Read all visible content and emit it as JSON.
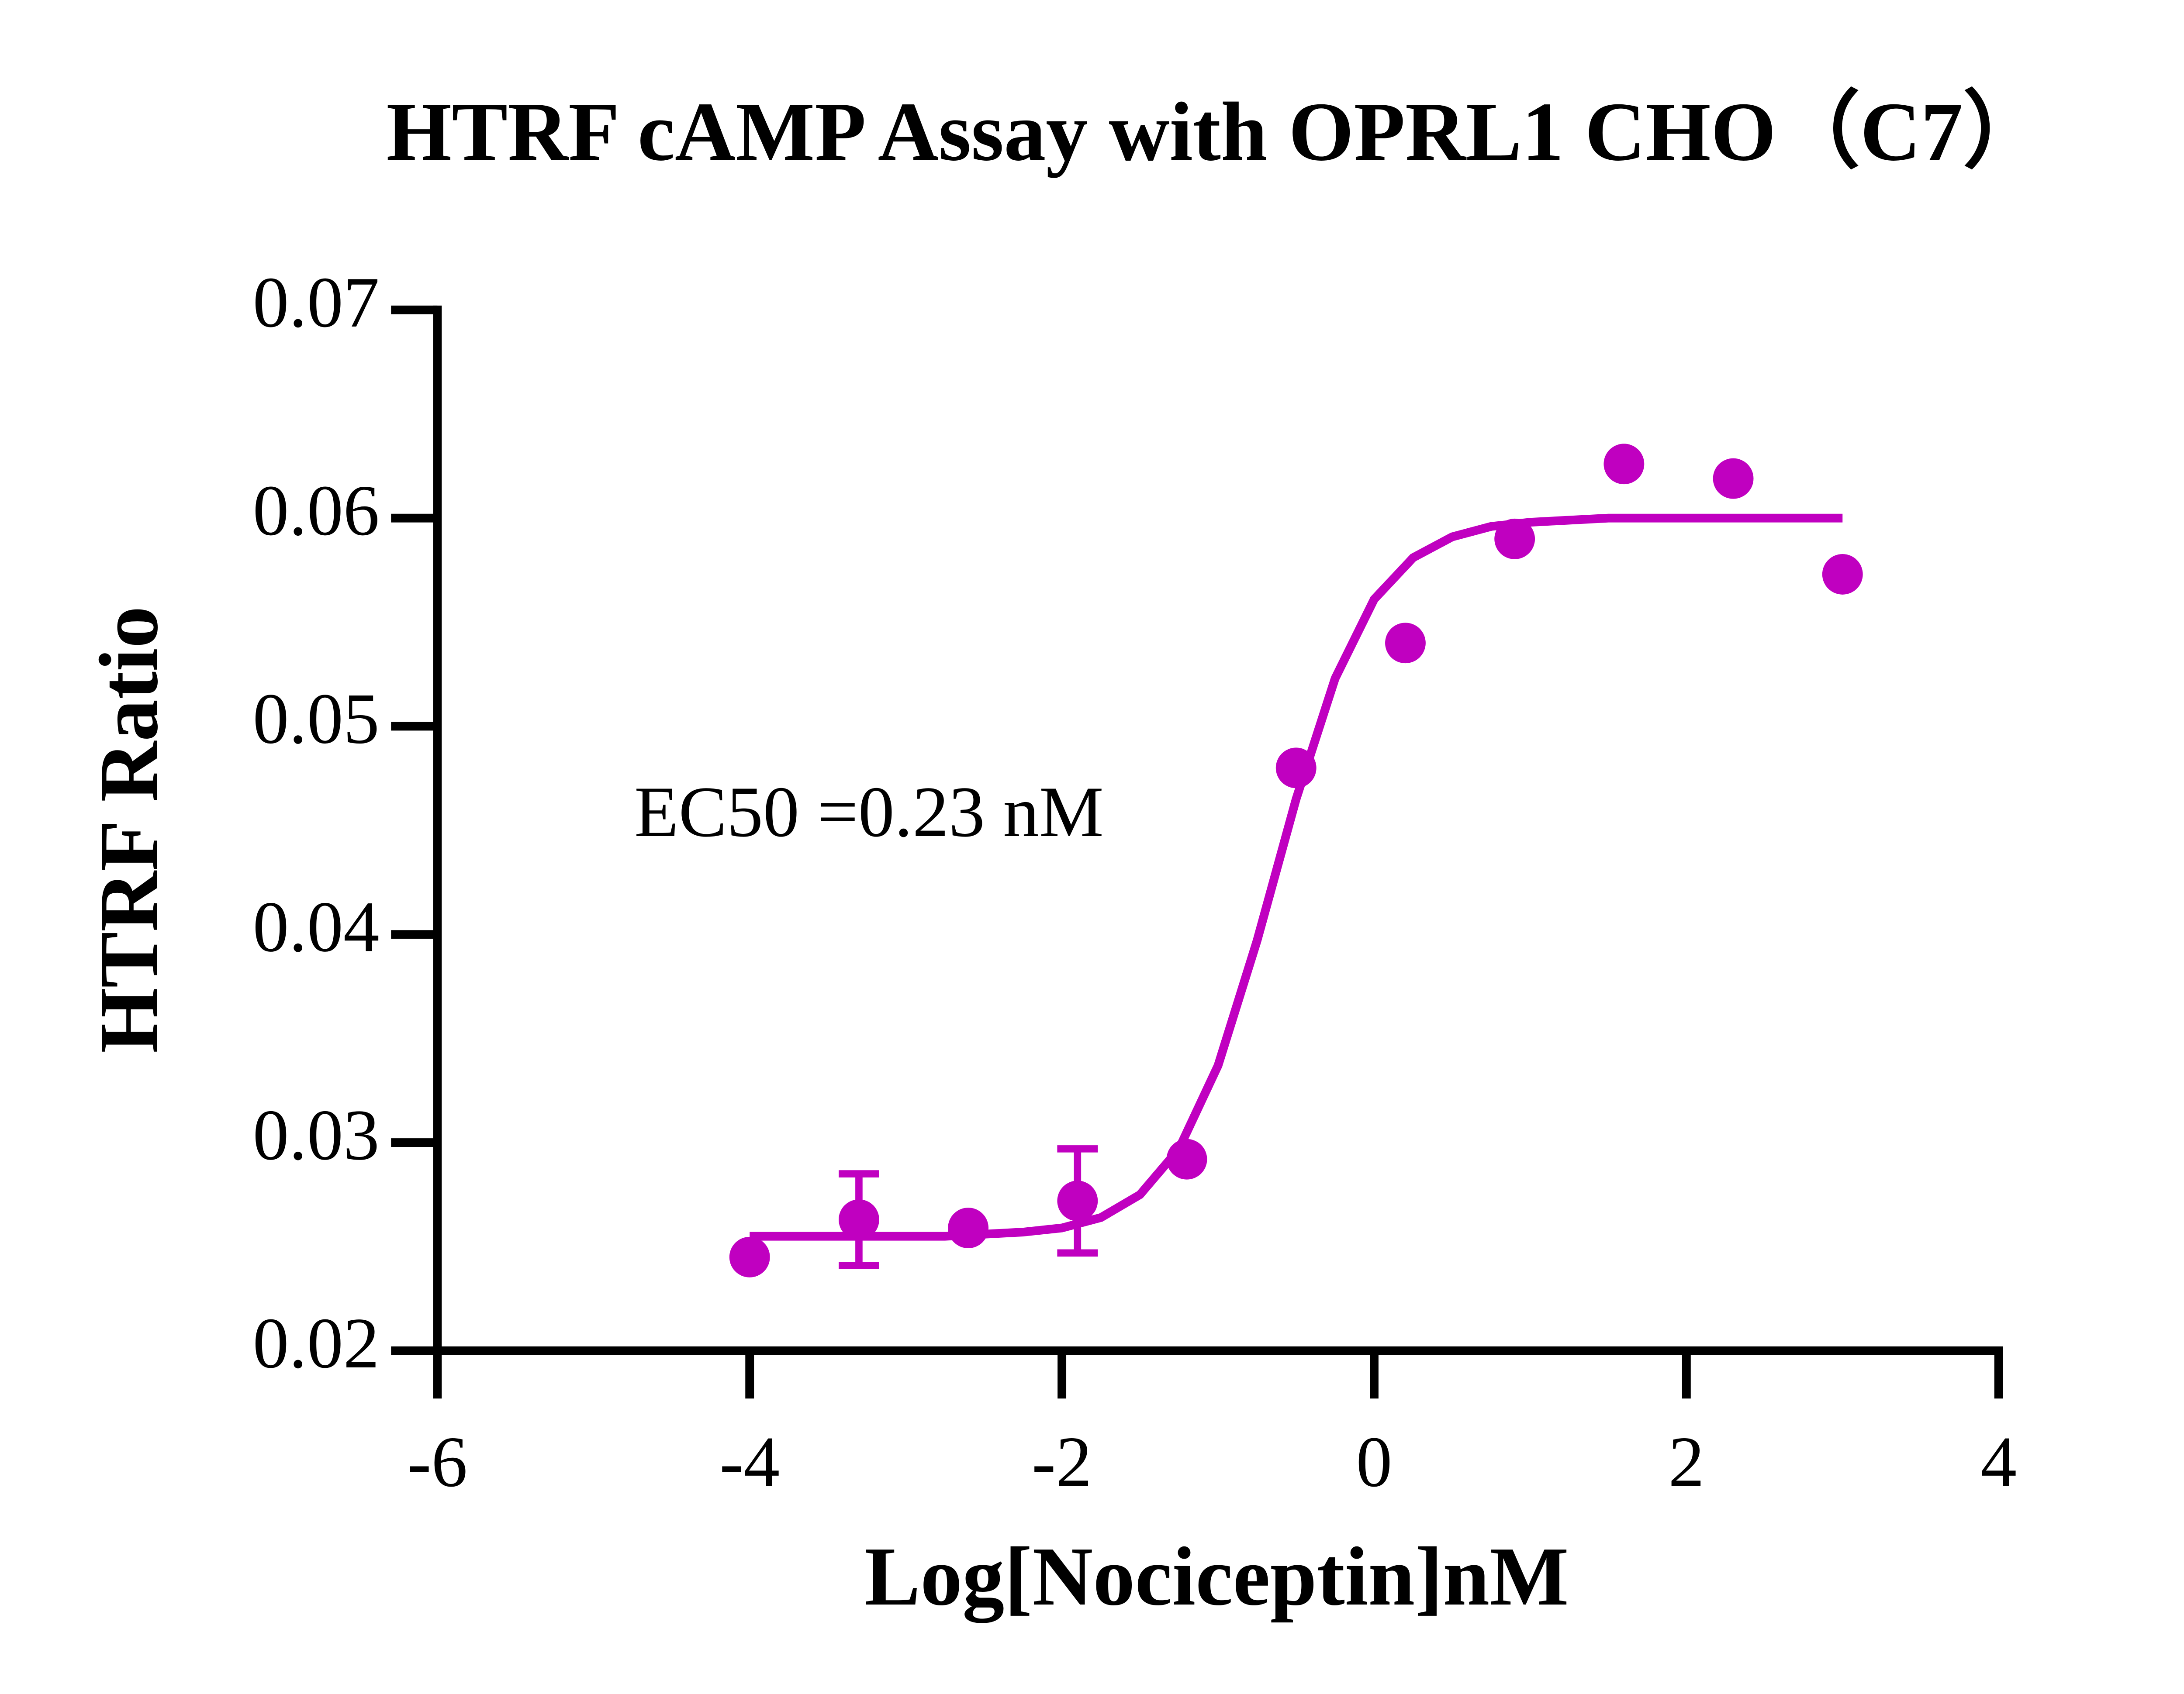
{
  "chart_data": {
    "type": "scatter",
    "title": "HTRF cAMP Assay with OPRL1 CHO（C7）",
    "x_label": "Log[Nociceptin]nM",
    "y_label": "HTRF Ratio",
    "annotation": "EC50 =0.23 nM",
    "xlim": [
      -6,
      4
    ],
    "xticks": [
      -6,
      -4,
      -2,
      0,
      2,
      4
    ],
    "ylim": [
      0.02,
      0.07
    ],
    "yticks": [
      0.02,
      0.03,
      0.04,
      0.05,
      0.06,
      0.07
    ],
    "series": [
      {
        "type": "scatter",
        "color": "#c000c0",
        "x": [
          -4.0,
          -3.3,
          -2.6,
          -1.9,
          -1.2,
          -0.5,
          0.2,
          0.9,
          1.6,
          2.3,
          3.0
        ],
        "values": [
          0.0245,
          0.0263,
          0.0259,
          0.0272,
          0.0292,
          0.048,
          0.054,
          0.059,
          0.0626,
          0.0619,
          0.0573
        ],
        "errors": [
          null,
          0.0022,
          null,
          0.0025,
          null,
          null,
          null,
          null,
          null,
          null,
          null
        ]
      },
      {
        "type": "line",
        "color": "#c000c0",
        "x": [
          -4,
          -3.75,
          -3.5,
          -3.25,
          -3,
          -2.75,
          -2.5,
          -2.25,
          -2,
          -1.75,
          -1.5,
          -1.25,
          -1,
          -0.75,
          -0.5,
          -0.25,
          0,
          0.25,
          0.5,
          0.75,
          1,
          1.25,
          1.5,
          1.75,
          2,
          2.25,
          2.5,
          2.75,
          3
        ],
        "values": [
          0.0255,
          0.0255,
          0.0255,
          0.0255,
          0.0255,
          0.0255,
          0.0256,
          0.0257,
          0.0259,
          0.0264,
          0.0275,
          0.0297,
          0.0337,
          0.0397,
          0.0465,
          0.0523,
          0.0561,
          0.0581,
          0.0591,
          0.0596,
          0.0598,
          0.0599,
          0.06,
          0.06,
          0.06,
          0.06,
          0.06,
          0.06,
          0.06
        ]
      }
    ]
  }
}
